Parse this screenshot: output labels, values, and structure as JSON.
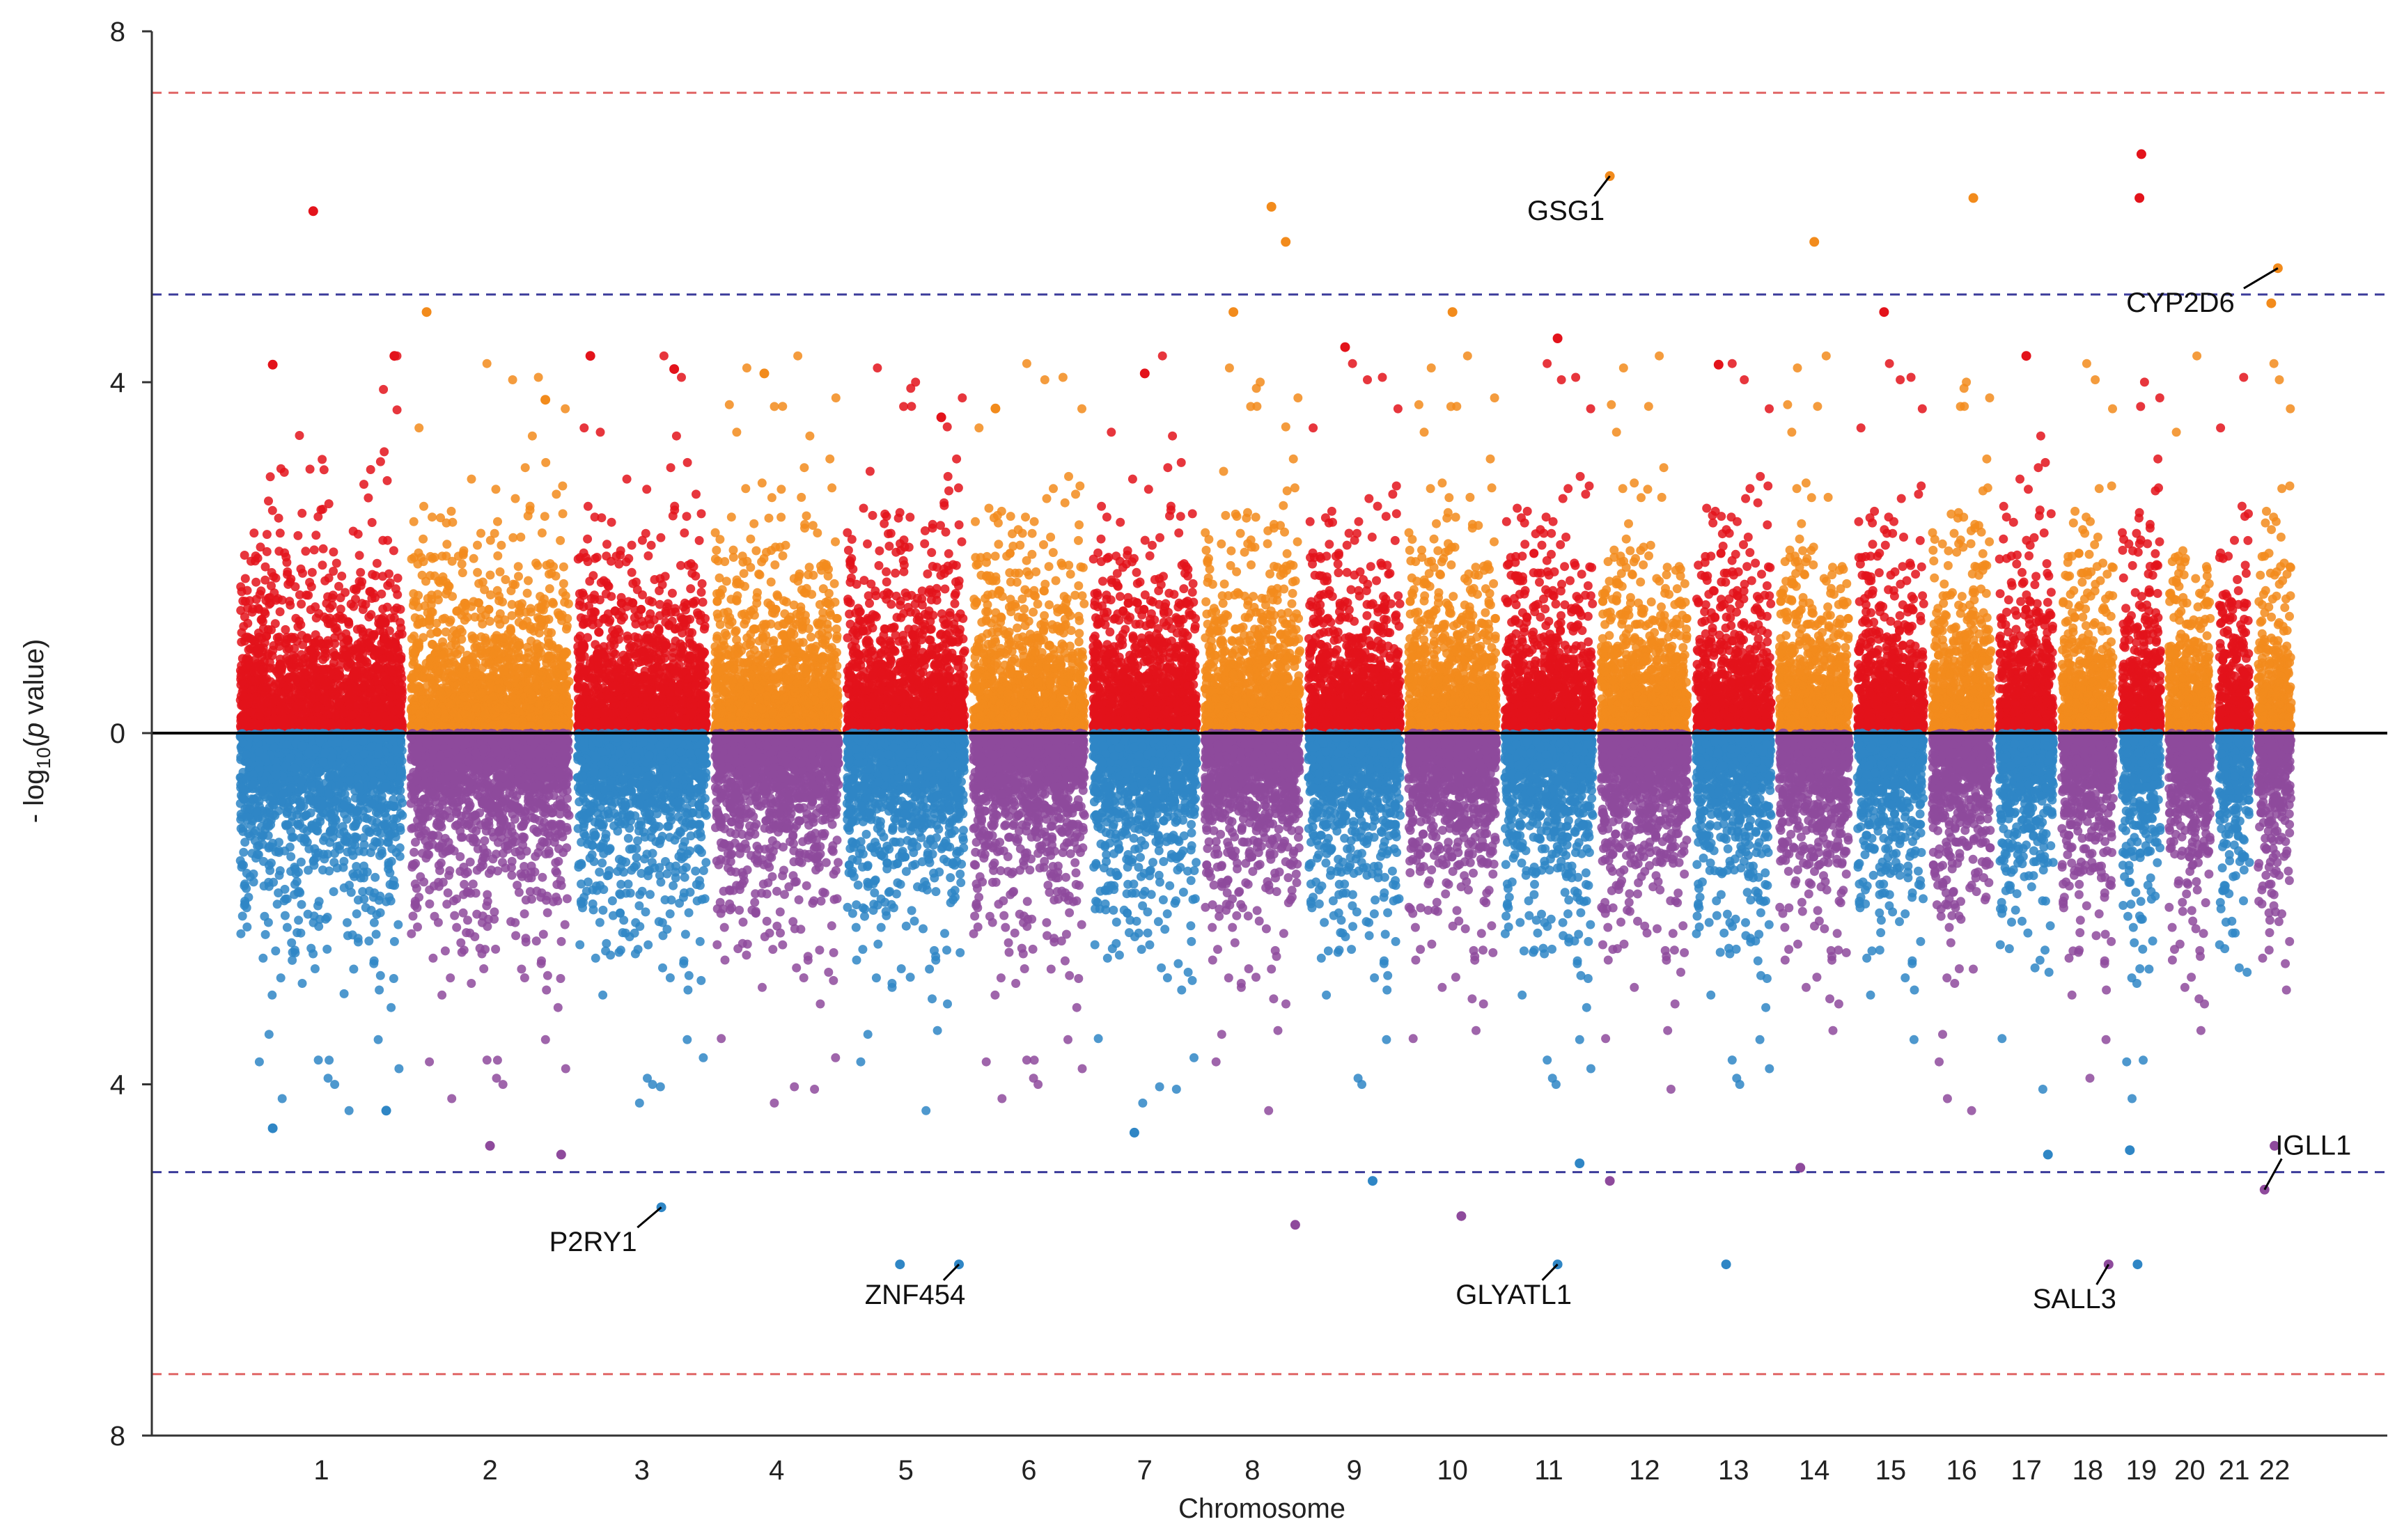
{
  "chart_data": {
    "type": "scatter",
    "subtype": "miami-plot",
    "title": "",
    "xlabel": "Chromosome",
    "ylabel_prefix": "- log",
    "ylabel_sub": "10",
    "ylabel_open": "(",
    "ylabel_p": "p",
    "ylabel_suffix": " value)",
    "y_ticks_top": [
      "8",
      "4",
      "0"
    ],
    "y_ticks_bottom": [
      "4",
      "8"
    ],
    "ylim_top": [
      0,
      8
    ],
    "ylim_bottom": [
      0,
      8
    ],
    "grid": false,
    "significance_lines": [
      {
        "value": 7.3,
        "style": "dashed",
        "color": "#e06666"
      },
      {
        "value": 5.0,
        "style": "dashed",
        "color": "#3b3b9a"
      }
    ],
    "colors": {
      "top_odd": "#e3131b",
      "top_even": "#f28b1c",
      "bottom_odd": "#2f86c5",
      "bottom_even": "#8e4a9c",
      "baseline": "#000000",
      "axis": "#333333"
    },
    "chromosomes": [
      "1",
      "2",
      "3",
      "4",
      "5",
      "6",
      "7",
      "8",
      "9",
      "10",
      "11",
      "12",
      "13",
      "14",
      "15",
      "16",
      "17",
      "18",
      "19",
      "20",
      "21",
      "22"
    ],
    "chromosome_spans_mb": [
      249,
      243,
      198,
      190,
      181,
      171,
      159,
      146,
      141,
      135,
      135,
      133,
      115,
      107,
      102,
      90,
      83,
      80,
      59,
      64,
      47,
      51
    ],
    "top_peaks": [
      {
        "chr": "1",
        "pos": 0.45,
        "y": 5.95
      },
      {
        "chr": "1",
        "pos": 0.95,
        "y": 4.3
      },
      {
        "chr": "1",
        "pos": 0.2,
        "y": 4.2
      },
      {
        "chr": "2",
        "pos": 0.1,
        "y": 4.8
      },
      {
        "chr": "2",
        "pos": 0.85,
        "y": 3.8
      },
      {
        "chr": "3",
        "pos": 0.1,
        "y": 4.3
      },
      {
        "chr": "3",
        "pos": 0.75,
        "y": 4.15
      },
      {
        "chr": "4",
        "pos": 0.4,
        "y": 4.1
      },
      {
        "chr": "5",
        "pos": 0.8,
        "y": 3.6
      },
      {
        "chr": "6",
        "pos": 0.2,
        "y": 3.7
      },
      {
        "chr": "7",
        "pos": 0.5,
        "y": 4.1
      },
      {
        "chr": "8",
        "pos": 0.3,
        "y": 4.8
      },
      {
        "chr": "8",
        "pos": 0.7,
        "y": 6.0
      },
      {
        "chr": "8",
        "pos": 0.85,
        "y": 5.6
      },
      {
        "chr": "9",
        "pos": 0.4,
        "y": 4.4
      },
      {
        "chr": "10",
        "pos": 0.5,
        "y": 4.8
      },
      {
        "chr": "11",
        "pos": 0.6,
        "y": 4.5
      },
      {
        "chr": "12",
        "pos": 0.1,
        "y": 6.35
      },
      {
        "chr": "13",
        "pos": 0.3,
        "y": 4.2
      },
      {
        "chr": "14",
        "pos": 0.5,
        "y": 5.6
      },
      {
        "chr": "15",
        "pos": 0.4,
        "y": 4.8
      },
      {
        "chr": "16",
        "pos": 0.7,
        "y": 6.1
      },
      {
        "chr": "17",
        "pos": 0.5,
        "y": 4.3
      },
      {
        "chr": "19",
        "pos": 0.5,
        "y": 6.6
      },
      {
        "chr": "19",
        "pos": 0.45,
        "y": 6.1
      },
      {
        "chr": "22",
        "pos": 0.6,
        "y": 5.3
      },
      {
        "chr": "22",
        "pos": 0.4,
        "y": 4.9
      }
    ],
    "bottom_peaks": [
      {
        "chr": "1",
        "pos": 0.2,
        "y": 4.5
      },
      {
        "chr": "1",
        "pos": 0.9,
        "y": 4.3
      },
      {
        "chr": "2",
        "pos": 0.5,
        "y": 4.7
      },
      {
        "chr": "2",
        "pos": 0.95,
        "y": 4.8
      },
      {
        "chr": "3",
        "pos": 0.65,
        "y": 5.4
      },
      {
        "chr": "5",
        "pos": 0.45,
        "y": 6.05
      },
      {
        "chr": "5",
        "pos": 0.95,
        "y": 6.05
      },
      {
        "chr": "7",
        "pos": 0.4,
        "y": 4.55
      },
      {
        "chr": "8",
        "pos": 0.95,
        "y": 5.6
      },
      {
        "chr": "9",
        "pos": 0.7,
        "y": 5.1
      },
      {
        "chr": "10",
        "pos": 0.6,
        "y": 5.5
      },
      {
        "chr": "11",
        "pos": 0.6,
        "y": 6.05
      },
      {
        "chr": "11",
        "pos": 0.85,
        "y": 4.9
      },
      {
        "chr": "12",
        "pos": 0.1,
        "y": 5.1
      },
      {
        "chr": "13",
        "pos": 0.4,
        "y": 6.05
      },
      {
        "chr": "14",
        "pos": 0.3,
        "y": 4.95
      },
      {
        "chr": "17",
        "pos": 0.9,
        "y": 4.8
      },
      {
        "chr": "18",
        "pos": 0.9,
        "y": 6.05
      },
      {
        "chr": "19",
        "pos": 0.4,
        "y": 6.05
      },
      {
        "chr": "19",
        "pos": 0.2,
        "y": 4.75
      },
      {
        "chr": "22",
        "pos": 0.2,
        "y": 5.2
      },
      {
        "chr": "22",
        "pos": 0.5,
        "y": 4.7
      }
    ],
    "annotations": [
      {
        "label": "GSG1",
        "side": "top",
        "chr": "12",
        "pos": 0.1,
        "y": 6.35,
        "label_dx": -0.45,
        "label_y": 5.85
      },
      {
        "label": "CYP2D6",
        "side": "top",
        "chr": "22",
        "pos": 0.6,
        "y": 5.3,
        "label_dx": -1.0,
        "label_y": 4.8
      },
      {
        "label": "P2RY1",
        "side": "bottom",
        "chr": "3",
        "pos": 0.65,
        "y": 5.4,
        "label_dx": -0.7,
        "label_y": 5.9
      },
      {
        "label": "ZNF454",
        "side": "bottom",
        "chr": "5",
        "pos": 0.95,
        "y": 6.05,
        "label_dx": -0.45,
        "label_y": 6.5
      },
      {
        "label": "GLYATL1",
        "side": "bottom",
        "chr": "11",
        "pos": 0.6,
        "y": 6.05,
        "label_dx": -0.45,
        "label_y": 6.5
      },
      {
        "label": "SALL3",
        "side": "bottom",
        "chr": "18",
        "pos": 0.9,
        "y": 6.05,
        "label_dx": -0.35,
        "label_y": 6.55
      },
      {
        "label": "IGLL1",
        "side": "bottom",
        "chr": "22",
        "pos": 0.2,
        "y": 5.2,
        "label_dx": 0.5,
        "label_y": 4.8
      }
    ]
  }
}
